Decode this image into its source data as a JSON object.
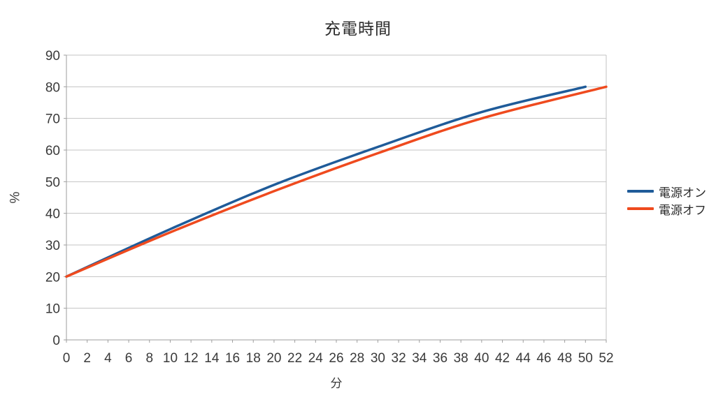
{
  "title": "充電時間",
  "chart_data": {
    "type": "line",
    "title": "充電時間",
    "xlabel": "分",
    "ylabel": "%",
    "xlim": [
      0,
      52
    ],
    "ylim": [
      0,
      90
    ],
    "x_tick_step": 2,
    "y_tick_step": 10,
    "grid": true,
    "legend_position": "right",
    "series": [
      {
        "name": "電源オン",
        "color": "#1f5b99",
        "x": [
          0,
          10,
          20,
          30,
          40,
          50
        ],
        "y": [
          20,
          35,
          49,
          61,
          72,
          80
        ]
      },
      {
        "name": "電源オフ",
        "color": "#ef4a1e",
        "x": [
          0,
          10,
          20,
          30,
          40,
          52
        ],
        "y": [
          20,
          34,
          47,
          59,
          70,
          80
        ]
      }
    ]
  },
  "colors": {
    "grid": "#c3c3c3",
    "axis": "#9e9e9e",
    "text": "#3a3a3a",
    "background": "#ffffff"
  }
}
